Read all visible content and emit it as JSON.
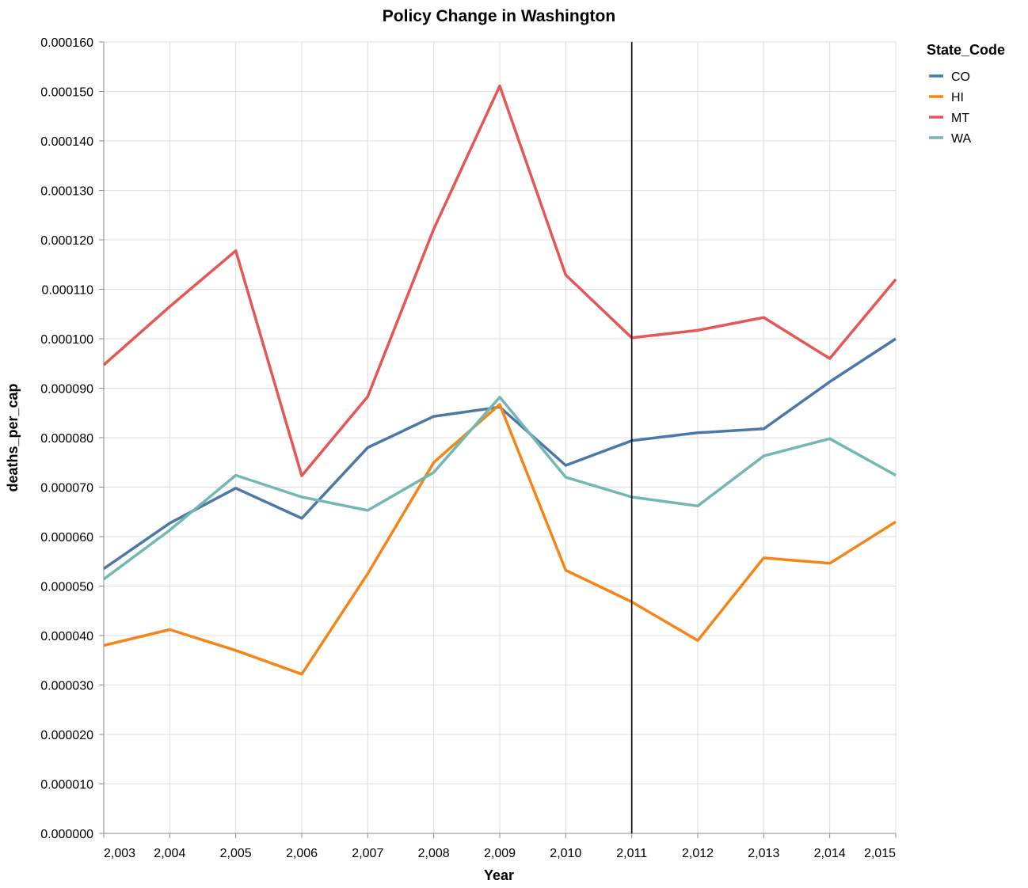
{
  "chart_data": {
    "type": "line",
    "title": "Policy Change in Washington",
    "xlabel": "Year",
    "ylabel": "deaths_per_cap",
    "x": [
      2003,
      2004,
      2005,
      2006,
      2007,
      2008,
      2009,
      2010,
      2011,
      2012,
      2013,
      2014,
      2015
    ],
    "x_tick_labels": [
      "2,003",
      "2,004",
      "2,005",
      "2,006",
      "2,007",
      "2,008",
      "2,009",
      "2,010",
      "2,011",
      "2,012",
      "2,013",
      "2,014",
      "2,015"
    ],
    "xlim": [
      2003,
      2015
    ],
    "ylim": [
      0,
      0.00016
    ],
    "y_ticks": [
      0,
      1e-05,
      2e-05,
      3e-05,
      4e-05,
      5e-05,
      6e-05,
      7e-05,
      8e-05,
      9e-05,
      0.0001,
      0.00011,
      0.00012,
      0.00013,
      0.00014,
      0.00015,
      0.00016
    ],
    "y_tick_labels": [
      "0.000000",
      "0.000010",
      "0.000020",
      "0.000030",
      "0.000040",
      "0.000050",
      "0.000060",
      "0.000070",
      "0.000080",
      "0.000090",
      "0.000100",
      "0.000110",
      "0.000120",
      "0.000130",
      "0.000140",
      "0.000150",
      "0.000160"
    ],
    "grid": true,
    "legend_title": "State_Code",
    "legend_position": "top-right",
    "rule": {
      "x": 2011,
      "color": "#000000"
    },
    "series": [
      {
        "name": "CO",
        "color": "#4c78a8",
        "values": [
          5.35e-05,
          6.27e-05,
          6.98e-05,
          6.37e-05,
          7.8e-05,
          8.43e-05,
          8.62e-05,
          7.44e-05,
          7.94e-05,
          8.1e-05,
          8.18e-05,
          9.13e-05,
          0.0001
        ]
      },
      {
        "name": "HI",
        "color": "#f58518",
        "values": [
          3.8e-05,
          4.12e-05,
          3.7e-05,
          3.22e-05,
          5.25e-05,
          7.5e-05,
          8.67e-05,
          5.32e-05,
          4.68e-05,
          3.9e-05,
          5.57e-05,
          5.46e-05,
          6.3e-05
        ]
      },
      {
        "name": "MT",
        "color": "#e45756",
        "values": [
          9.47e-05,
          0.0001065,
          0.0001178,
          7.23e-05,
          8.83e-05,
          0.0001222,
          0.0001511,
          0.0001129,
          0.0001002,
          0.0001017,
          0.0001043,
          9.6e-05,
          0.000112
        ]
      },
      {
        "name": "WA",
        "color": "#72b7b2",
        "values": [
          5.14e-05,
          6.13e-05,
          7.24e-05,
          6.8e-05,
          6.53e-05,
          7.3e-05,
          8.82e-05,
          7.2e-05,
          6.8e-05,
          6.62e-05,
          7.63e-05,
          7.98e-05,
          7.24e-05
        ]
      }
    ]
  }
}
